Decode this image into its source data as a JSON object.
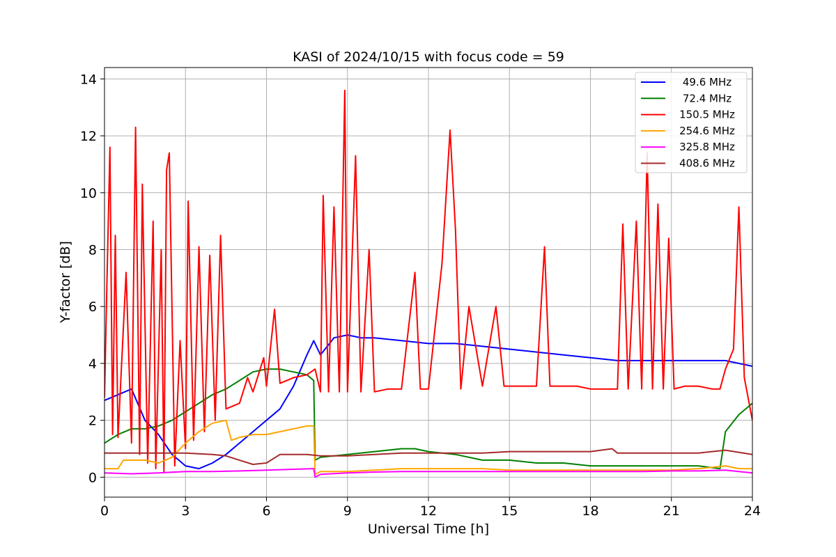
{
  "chart_data": {
    "type": "line",
    "title": "KASI of 2024/10/15 with focus code = 59",
    "xlabel": "Universal Time [h]",
    "ylabel": "Y-factor [dB]",
    "xlim": [
      0,
      24
    ],
    "ylim": [
      -0.7,
      14.4
    ],
    "xticks": [
      0,
      3,
      6,
      9,
      12,
      15,
      18,
      21,
      24
    ],
    "yticks": [
      0,
      2,
      4,
      6,
      8,
      10,
      12,
      14
    ],
    "grid": true,
    "legend_position": "top-right",
    "series": [
      {
        "name": "49.6 MHz",
        "color": "#0000ff",
        "points": [
          [
            0,
            2.7
          ],
          [
            0.5,
            2.9
          ],
          [
            1,
            3.1
          ],
          [
            1.5,
            2.0
          ],
          [
            2,
            1.5
          ],
          [
            2.5,
            0.8
          ],
          [
            3,
            0.4
          ],
          [
            3.5,
            0.3
          ],
          [
            4,
            0.5
          ],
          [
            4.5,
            0.8
          ],
          [
            5,
            1.2
          ],
          [
            5.5,
            1.6
          ],
          [
            6,
            2.0
          ],
          [
            6.5,
            2.4
          ],
          [
            7,
            3.2
          ],
          [
            7.5,
            4.3
          ],
          [
            7.75,
            4.8
          ],
          [
            8,
            4.3
          ],
          [
            8.5,
            4.9
          ],
          [
            9,
            5.0
          ],
          [
            9.5,
            4.9
          ],
          [
            10,
            4.9
          ],
          [
            11,
            4.8
          ],
          [
            12,
            4.7
          ],
          [
            13,
            4.7
          ],
          [
            14,
            4.6
          ],
          [
            15,
            4.5
          ],
          [
            16,
            4.4
          ],
          [
            17,
            4.3
          ],
          [
            18,
            4.2
          ],
          [
            19,
            4.1
          ],
          [
            20,
            4.1
          ],
          [
            21,
            4.1
          ],
          [
            22,
            4.1
          ],
          [
            23,
            4.1
          ],
          [
            24,
            3.9
          ]
        ]
      },
      {
        "name": "72.4 MHz",
        "color": "#008000",
        "points": [
          [
            0,
            1.2
          ],
          [
            0.5,
            1.5
          ],
          [
            1,
            1.7
          ],
          [
            1.5,
            1.7
          ],
          [
            2,
            1.8
          ],
          [
            2.5,
            2.0
          ],
          [
            3,
            2.3
          ],
          [
            3.5,
            2.6
          ],
          [
            4,
            2.9
          ],
          [
            4.5,
            3.1
          ],
          [
            5,
            3.4
          ],
          [
            5.5,
            3.7
          ],
          [
            6,
            3.8
          ],
          [
            6.5,
            3.8
          ],
          [
            7,
            3.7
          ],
          [
            7.5,
            3.6
          ],
          [
            7.75,
            3.4
          ],
          [
            7.8,
            0.6
          ],
          [
            8,
            0.7
          ],
          [
            9,
            0.8
          ],
          [
            10,
            0.9
          ],
          [
            11,
            1.0
          ],
          [
            11.5,
            1.0
          ],
          [
            12,
            0.9
          ],
          [
            13,
            0.8
          ],
          [
            14,
            0.6
          ],
          [
            15,
            0.6
          ],
          [
            16,
            0.5
          ],
          [
            17,
            0.5
          ],
          [
            18,
            0.4
          ],
          [
            19,
            0.4
          ],
          [
            20,
            0.4
          ],
          [
            21,
            0.4
          ],
          [
            22,
            0.4
          ],
          [
            22.8,
            0.3
          ],
          [
            23,
            1.6
          ],
          [
            23.5,
            2.2
          ],
          [
            24,
            2.6
          ]
        ]
      },
      {
        "name": "150.5 MHz",
        "color": "#ff0000",
        "points": [
          [
            0,
            2.8
          ],
          [
            0.1,
            7.3
          ],
          [
            0.2,
            11.6
          ],
          [
            0.3,
            1.5
          ],
          [
            0.4,
            8.5
          ],
          [
            0.5,
            1.4
          ],
          [
            0.8,
            7.2
          ],
          [
            1,
            1.2
          ],
          [
            1.15,
            12.3
          ],
          [
            1.3,
            0.8
          ],
          [
            1.4,
            10.3
          ],
          [
            1.6,
            0.5
          ],
          [
            1.8,
            9.0
          ],
          [
            1.9,
            0.3
          ],
          [
            2.1,
            8.0
          ],
          [
            2.2,
            0.2
          ],
          [
            2.3,
            10.8
          ],
          [
            2.4,
            11.4
          ],
          [
            2.6,
            0.4
          ],
          [
            2.8,
            4.8
          ],
          [
            3,
            1.0
          ],
          [
            3.1,
            9.7
          ],
          [
            3.3,
            1.3
          ],
          [
            3.5,
            8.1
          ],
          [
            3.7,
            1.6
          ],
          [
            3.9,
            7.8
          ],
          [
            4.1,
            2.0
          ],
          [
            4.3,
            8.5
          ],
          [
            4.5,
            2.4
          ],
          [
            5,
            2.6
          ],
          [
            5.3,
            3.5
          ],
          [
            5.5,
            3.0
          ],
          [
            5.9,
            4.2
          ],
          [
            6,
            3.2
          ],
          [
            6.3,
            5.9
          ],
          [
            6.5,
            3.3
          ],
          [
            7,
            3.5
          ],
          [
            7.5,
            3.6
          ],
          [
            7.8,
            3.8
          ],
          [
            8,
            3.0
          ],
          [
            8.1,
            9.9
          ],
          [
            8.3,
            3.0
          ],
          [
            8.5,
            9.5
          ],
          [
            8.7,
            3.0
          ],
          [
            8.9,
            13.6
          ],
          [
            9,
            3.0
          ],
          [
            9.3,
            11.3
          ],
          [
            9.5,
            3.0
          ],
          [
            9.8,
            8.0
          ],
          [
            10,
            3.0
          ],
          [
            10.5,
            3.1
          ],
          [
            11,
            3.1
          ],
          [
            11.5,
            7.2
          ],
          [
            11.7,
            3.1
          ],
          [
            12,
            3.1
          ],
          [
            12.5,
            7.5
          ],
          [
            12.8,
            12.2
          ],
          [
            13,
            8.7
          ],
          [
            13.2,
            3.1
          ],
          [
            13.5,
            6.0
          ],
          [
            14,
            3.2
          ],
          [
            14.5,
            6.0
          ],
          [
            14.8,
            3.2
          ],
          [
            15,
            3.2
          ],
          [
            16,
            3.2
          ],
          [
            16.3,
            8.1
          ],
          [
            16.5,
            3.2
          ],
          [
            17,
            3.2
          ],
          [
            17.5,
            3.2
          ],
          [
            18,
            3.1
          ],
          [
            18.5,
            3.1
          ],
          [
            19,
            3.1
          ],
          [
            19.2,
            8.9
          ],
          [
            19.4,
            3.1
          ],
          [
            19.7,
            9.0
          ],
          [
            19.9,
            3.1
          ],
          [
            20.1,
            11.4
          ],
          [
            20.3,
            3.1
          ],
          [
            20.5,
            9.6
          ],
          [
            20.7,
            3.1
          ],
          [
            20.9,
            8.4
          ],
          [
            21.1,
            3.1
          ],
          [
            21.5,
            3.2
          ],
          [
            22,
            3.2
          ],
          [
            22.5,
            3.1
          ],
          [
            22.8,
            3.1
          ],
          [
            23,
            3.8
          ],
          [
            23.3,
            4.5
          ],
          [
            23.5,
            9.5
          ],
          [
            23.7,
            3.5
          ],
          [
            24,
            2.0
          ]
        ]
      },
      {
        "name": "254.6 MHz",
        "color": "#ffa500",
        "points": [
          [
            0,
            0.3
          ],
          [
            0.5,
            0.3
          ],
          [
            0.7,
            0.6
          ],
          [
            1,
            0.6
          ],
          [
            1.5,
            0.6
          ],
          [
            2,
            0.5
          ],
          [
            2.5,
            0.7
          ],
          [
            3,
            1.2
          ],
          [
            3.5,
            1.6
          ],
          [
            4,
            1.9
          ],
          [
            4.5,
            2.0
          ],
          [
            4.7,
            1.3
          ],
          [
            5,
            1.4
          ],
          [
            5.5,
            1.5
          ],
          [
            6,
            1.5
          ],
          [
            6.5,
            1.6
          ],
          [
            7,
            1.7
          ],
          [
            7.5,
            1.8
          ],
          [
            7.75,
            1.8
          ],
          [
            7.8,
            0.1
          ],
          [
            8,
            0.2
          ],
          [
            9,
            0.2
          ],
          [
            10,
            0.25
          ],
          [
            11,
            0.3
          ],
          [
            12,
            0.3
          ],
          [
            13,
            0.3
          ],
          [
            14,
            0.3
          ],
          [
            15,
            0.25
          ],
          [
            16,
            0.25
          ],
          [
            17,
            0.25
          ],
          [
            18,
            0.25
          ],
          [
            19,
            0.25
          ],
          [
            20,
            0.25
          ],
          [
            21,
            0.25
          ],
          [
            22,
            0.3
          ],
          [
            23,
            0.4
          ],
          [
            23.5,
            0.3
          ],
          [
            24,
            0.3
          ]
        ]
      },
      {
        "name": "325.8 MHz",
        "color": "#ff00ff",
        "points": [
          [
            0,
            0.15
          ],
          [
            1,
            0.12
          ],
          [
            2,
            0.15
          ],
          [
            3,
            0.2
          ],
          [
            4,
            0.2
          ],
          [
            5,
            0.22
          ],
          [
            6,
            0.25
          ],
          [
            7,
            0.28
          ],
          [
            7.75,
            0.3
          ],
          [
            7.8,
            0.0
          ],
          [
            8,
            0.1
          ],
          [
            9,
            0.15
          ],
          [
            10,
            0.18
          ],
          [
            11,
            0.2
          ],
          [
            12,
            0.2
          ],
          [
            13,
            0.2
          ],
          [
            14,
            0.2
          ],
          [
            15,
            0.2
          ],
          [
            16,
            0.2
          ],
          [
            17,
            0.2
          ],
          [
            18,
            0.2
          ],
          [
            19,
            0.2
          ],
          [
            20,
            0.2
          ],
          [
            21,
            0.22
          ],
          [
            22,
            0.22
          ],
          [
            23,
            0.25
          ],
          [
            24,
            0.15
          ]
        ]
      },
      {
        "name": "408.6 MHz",
        "color": "#a52a2a",
        "points": [
          [
            0,
            0.85
          ],
          [
            1,
            0.85
          ],
          [
            2,
            0.85
          ],
          [
            3,
            0.85
          ],
          [
            4,
            0.8
          ],
          [
            4.5,
            0.75
          ],
          [
            5,
            0.6
          ],
          [
            5.5,
            0.45
          ],
          [
            6,
            0.5
          ],
          [
            6.5,
            0.8
          ],
          [
            7,
            0.8
          ],
          [
            7.5,
            0.8
          ],
          [
            8,
            0.75
          ],
          [
            9,
            0.75
          ],
          [
            10,
            0.8
          ],
          [
            11,
            0.85
          ],
          [
            12,
            0.85
          ],
          [
            13,
            0.85
          ],
          [
            14,
            0.85
          ],
          [
            15,
            0.9
          ],
          [
            16,
            0.9
          ],
          [
            17,
            0.9
          ],
          [
            18,
            0.9
          ],
          [
            18.8,
            1.0
          ],
          [
            19,
            0.85
          ],
          [
            20,
            0.85
          ],
          [
            21,
            0.85
          ],
          [
            22,
            0.85
          ],
          [
            23,
            0.95
          ],
          [
            24,
            0.8
          ]
        ]
      }
    ]
  }
}
